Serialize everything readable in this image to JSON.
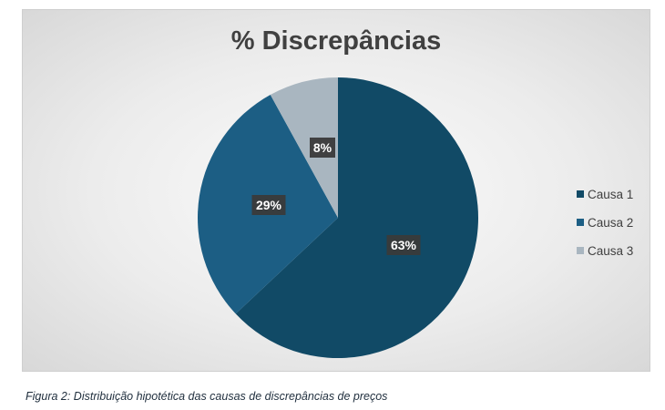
{
  "chart_data": {
    "type": "pie",
    "title": "% Discrepâncias",
    "categories": [
      "Causa 1",
      "Causa 2",
      "Causa 3"
    ],
    "values": [
      63,
      29,
      8
    ],
    "data_labels": [
      "63%",
      "29%",
      "8%"
    ],
    "colors": [
      "#114a66",
      "#1c5e84",
      "#a9b6c0"
    ],
    "legend_position": "right"
  },
  "caption": "Figura 2: Distribuição hipotética das causas de discrepâncias de preços"
}
